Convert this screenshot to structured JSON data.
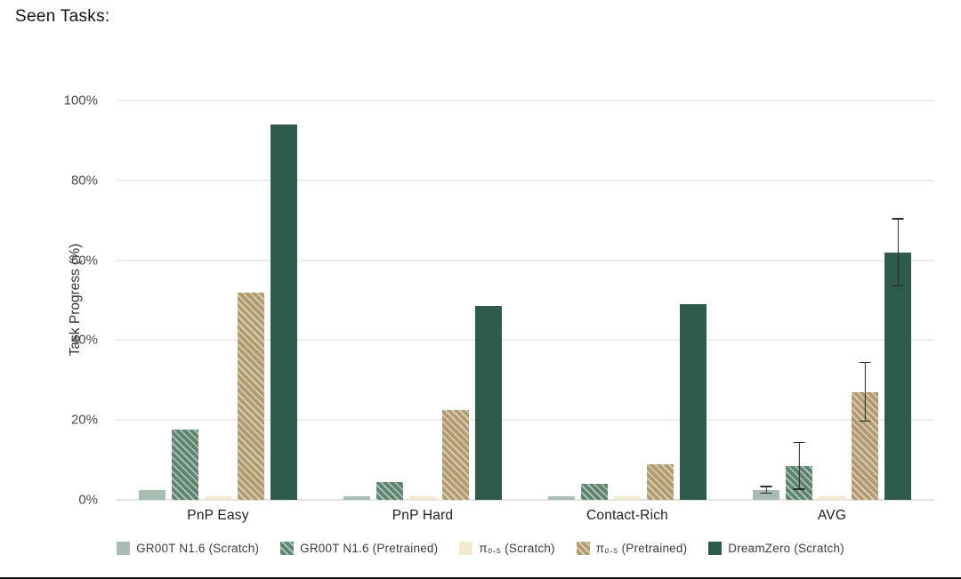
{
  "page": {
    "title": "Seen Tasks:"
  },
  "chart_data": {
    "type": "bar",
    "title": "Seen Tasks:",
    "ylabel": "Task Progress (%)",
    "ylim": [
      0,
      100
    ],
    "grid": "horizontal",
    "legend_position": "bottom",
    "yticks": [
      {
        "label": "0%",
        "value": 0
      },
      {
        "label": "20%",
        "value": 20
      },
      {
        "label": "40%",
        "value": 40
      },
      {
        "label": "60%",
        "value": 60
      },
      {
        "label": "80%",
        "value": 80
      },
      {
        "label": "100%",
        "value": 100
      }
    ],
    "categories": [
      "PnP Easy",
      "PnP Hard",
      "Contact-Rich",
      "AVG"
    ],
    "series": [
      {
        "name": "GR00T N1.6 (Scratch)",
        "color": "#a9bcb1",
        "hatch": false,
        "values": [
          2.5,
          1,
          1,
          2.5
        ],
        "errors": [
          null,
          null,
          null,
          1
        ]
      },
      {
        "name": "GR00T N1.6 (Pretrained)",
        "color": "#5d8570",
        "hatch": true,
        "values": [
          17.5,
          4.5,
          4,
          8.5
        ],
        "errors": [
          null,
          null,
          null,
          6
        ]
      },
      {
        "name": "π₀.₅ (Scratch)",
        "color": "#f2e9cf",
        "hatch": false,
        "values": [
          1,
          1,
          1,
          1
        ],
        "errors": [
          null,
          null,
          null,
          null
        ]
      },
      {
        "name": "π₀.₅ (Pretrained)",
        "color": "#b19c70",
        "hatch": true,
        "values": [
          52,
          22.5,
          9,
          27
        ],
        "errors": [
          null,
          null,
          null,
          7.5
        ]
      },
      {
        "name": "DreamZero (Scratch)",
        "color": "#2e5a49",
        "hatch": false,
        "values": [
          94,
          48.5,
          49,
          62
        ],
        "errors": [
          null,
          null,
          null,
          8.5
        ]
      }
    ]
  }
}
